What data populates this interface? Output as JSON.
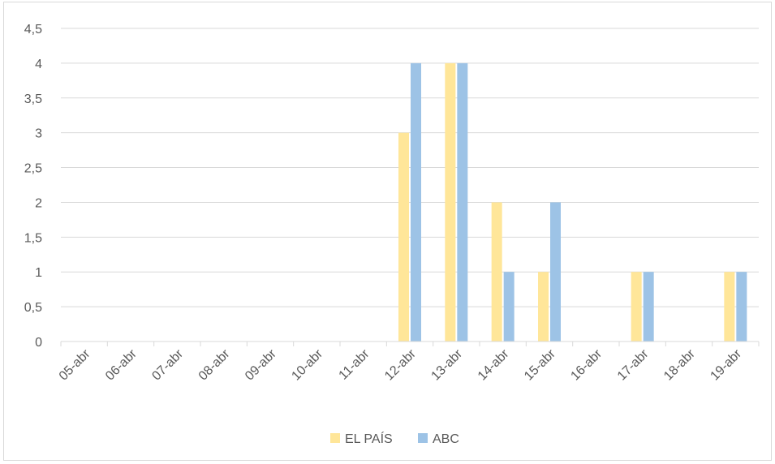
{
  "chart_data": {
    "type": "bar",
    "categories": [
      "05-abr",
      "06-abr",
      "07-abr",
      "08-abr",
      "09-abr",
      "10-abr",
      "11-abr",
      "12-abr",
      "13-abr",
      "14-abr",
      "15-abr",
      "16-abr",
      "17-abr",
      "18-abr",
      "19-abr"
    ],
    "series": [
      {
        "name": "EL PAÍS",
        "color": "#ffe699",
        "values": [
          0,
          0,
          0,
          0,
          0,
          0,
          0,
          3,
          4,
          2,
          1,
          0,
          1,
          0,
          1
        ]
      },
      {
        "name": "ABC",
        "color": "#9dc3e6",
        "values": [
          0,
          0,
          0,
          0,
          0,
          0,
          0,
          4,
          4,
          1,
          2,
          0,
          1,
          0,
          1
        ]
      }
    ],
    "yticks": [
      "0",
      "0,5",
      "1",
      "1,5",
      "2",
      "2,5",
      "3",
      "3,5",
      "4",
      "4,5"
    ],
    "ylim": [
      0,
      4.5
    ],
    "grid": true,
    "legend": "bottom",
    "title": "",
    "xlabel": "",
    "ylabel": ""
  }
}
